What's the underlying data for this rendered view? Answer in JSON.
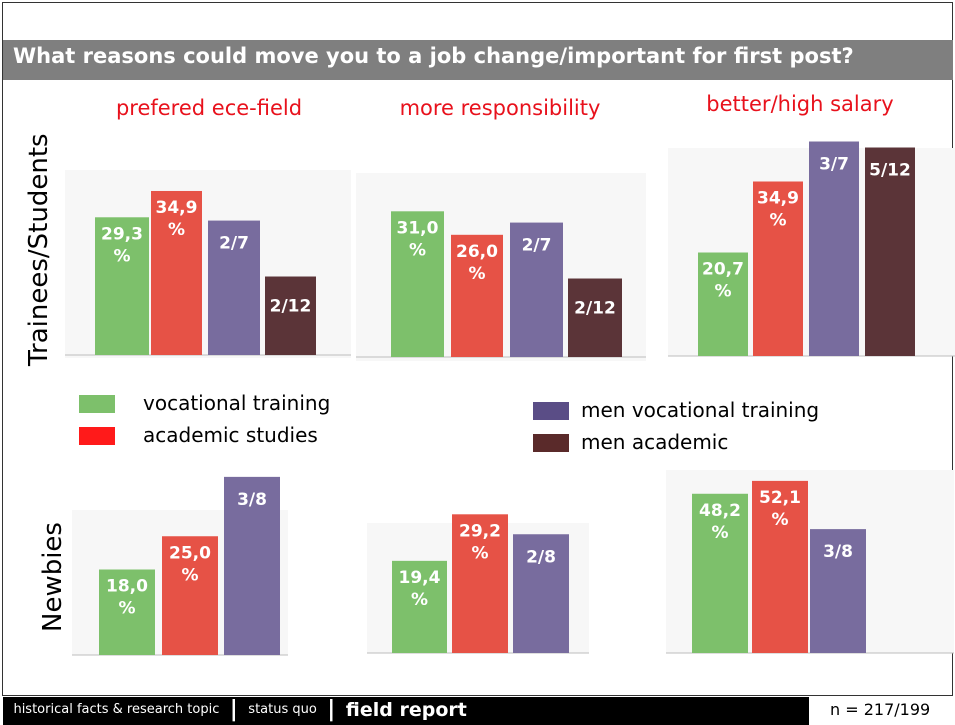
{
  "title": "What reasons could move you to a job change/important for first post?",
  "row_labels": [
    "Trainees/Students",
    "Newbies"
  ],
  "panel_titles": [
    "prefered  ece-field",
    "more responsibility",
    "better/high salary"
  ],
  "legend": {
    "left": [
      {
        "label": "vocational training",
        "color": "#7dc06b"
      },
      {
        "label": "academic studies",
        "color": "#ff1a1a"
      }
    ],
    "right": [
      {
        "label": "men vocational training",
        "color": "#5a4d86"
      },
      {
        "label": "men academic",
        "color": "#5a2a2a"
      }
    ]
  },
  "colors": {
    "vocational training": "#7dc06b",
    "academic studies": "#e65246",
    "men vocational training": "#786c9e",
    "men academic": "#5b3438",
    "title_bar": "#7f7f7f",
    "panel_title": "#e8111c"
  },
  "footer": {
    "part1": "historical facts & research topic",
    "sep1": "|",
    "part2": "status quo",
    "sep2": "|",
    "part3": "field report",
    "sample": "n = 217/199"
  },
  "chart_data": [
    {
      "type": "bar",
      "title": "prefered  ece-field",
      "row": "Trainees/Students",
      "categories": [
        "vocational training",
        "academic studies",
        "men vocational training",
        "men academic"
      ],
      "values": [
        29.3,
        34.9,
        28.6,
        16.7
      ],
      "labels": [
        [
          "29,3",
          "%"
        ],
        [
          "34,9",
          "%"
        ],
        [
          "2/7"
        ],
        [
          "2/12"
        ]
      ],
      "ylim": [
        0,
        40
      ]
    },
    {
      "type": "bar",
      "title": "more responsibility",
      "row": "Trainees/Students",
      "categories": [
        "vocational training",
        "academic studies",
        "men vocational training",
        "men academic"
      ],
      "values": [
        31.0,
        26.0,
        28.6,
        16.7
      ],
      "labels": [
        [
          "31,0",
          "%"
        ],
        [
          "26,0",
          "%"
        ],
        [
          "2/7"
        ],
        [
          "2/12"
        ]
      ],
      "ylim": [
        0,
        40
      ]
    },
    {
      "type": "bar",
      "title": "better/high salary",
      "row": "Trainees/Students",
      "categories": [
        "vocational training",
        "academic studies",
        "men vocational training",
        "men academic"
      ],
      "values": [
        20.7,
        34.9,
        42.9,
        41.7
      ],
      "labels": [
        [
          "20,7",
          "%"
        ],
        [
          "34,9",
          "%"
        ],
        [
          "3/7"
        ],
        [
          "5/12"
        ]
      ],
      "ylim": [
        0,
        43
      ]
    },
    {
      "type": "bar",
      "title": "prefered  ece-field",
      "row": "Newbies",
      "categories": [
        "vocational training",
        "academic studies",
        "men vocational training"
      ],
      "values": [
        18.0,
        25.0,
        37.5
      ],
      "labels": [
        [
          "18,0",
          "%"
        ],
        [
          "25,0",
          "%"
        ],
        [
          "3/8"
        ]
      ],
      "ylim": [
        0,
        40
      ]
    },
    {
      "type": "bar",
      "title": "more responsibility",
      "row": "Newbies",
      "categories": [
        "vocational training",
        "academic studies",
        "men vocational training"
      ],
      "values": [
        19.4,
        29.2,
        25.0
      ],
      "labels": [
        [
          "19,4",
          "%"
        ],
        [
          "29,2",
          "%"
        ],
        [
          "2/8"
        ]
      ],
      "ylim": [
        0,
        40
      ]
    },
    {
      "type": "bar",
      "title": "better/high salary",
      "row": "Newbies",
      "categories": [
        "vocational training",
        "academic studies",
        "men vocational training"
      ],
      "values": [
        48.2,
        52.1,
        37.5
      ],
      "labels": [
        [
          "48,2",
          "%"
        ],
        [
          "52,1",
          "%"
        ],
        [
          "3/8"
        ]
      ],
      "ylim": [
        0,
        56
      ]
    }
  ]
}
